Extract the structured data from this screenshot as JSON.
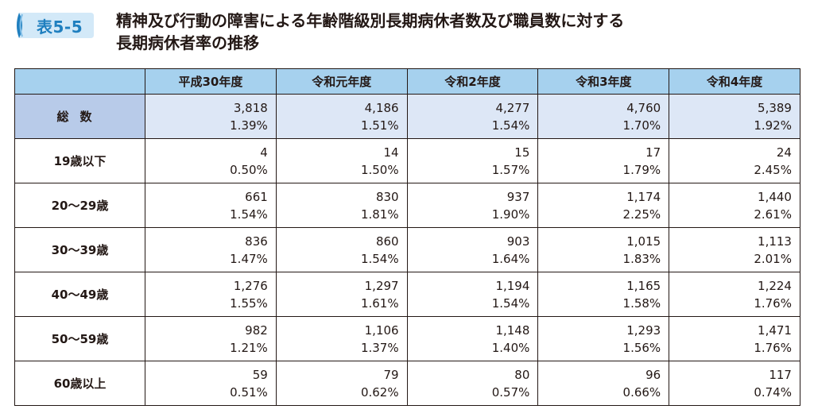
{
  "header": {
    "tag": "表5-5",
    "title_line1": "精神及び行動の障害による年齢階級別長期病休者数及び職員数に対する",
    "title_line2": "長期病休者率の推移",
    "tag_color": "#1f7fbf",
    "tag_bg": "#d3e9f8"
  },
  "table": {
    "corner": "",
    "columns": [
      "平成30年度",
      "令和元年度",
      "令和2年度",
      "令和3年度",
      "令和4年度"
    ],
    "rows": [
      {
        "label": "総数",
        "cells": [
          {
            "count": "3,818",
            "rate": "1.39%"
          },
          {
            "count": "4,186",
            "rate": "1.51%"
          },
          {
            "count": "4,277",
            "rate": "1.54%"
          },
          {
            "count": "4,760",
            "rate": "1.70%"
          },
          {
            "count": "5,389",
            "rate": "1.92%"
          }
        ]
      },
      {
        "label": "19歳以下",
        "cells": [
          {
            "count": "4",
            "rate": "0.50%"
          },
          {
            "count": "14",
            "rate": "1.50%"
          },
          {
            "count": "15",
            "rate": "1.57%"
          },
          {
            "count": "17",
            "rate": "1.79%"
          },
          {
            "count": "24",
            "rate": "2.45%"
          }
        ]
      },
      {
        "label": "20～29歳",
        "cells": [
          {
            "count": "661",
            "rate": "1.54%"
          },
          {
            "count": "830",
            "rate": "1.81%"
          },
          {
            "count": "937",
            "rate": "1.90%"
          },
          {
            "count": "1,174",
            "rate": "2.25%"
          },
          {
            "count": "1,440",
            "rate": "2.61%"
          }
        ]
      },
      {
        "label": "30～39歳",
        "cells": [
          {
            "count": "836",
            "rate": "1.47%"
          },
          {
            "count": "860",
            "rate": "1.54%"
          },
          {
            "count": "903",
            "rate": "1.64%"
          },
          {
            "count": "1,015",
            "rate": "1.83%"
          },
          {
            "count": "1,113",
            "rate": "2.01%"
          }
        ]
      },
      {
        "label": "40～49歳",
        "cells": [
          {
            "count": "1,276",
            "rate": "1.55%"
          },
          {
            "count": "1,297",
            "rate": "1.61%"
          },
          {
            "count": "1,194",
            "rate": "1.54%"
          },
          {
            "count": "1,165",
            "rate": "1.58%"
          },
          {
            "count": "1,224",
            "rate": "1.76%"
          }
        ]
      },
      {
        "label": "50～59歳",
        "cells": [
          {
            "count": "982",
            "rate": "1.21%"
          },
          {
            "count": "1,106",
            "rate": "1.37%"
          },
          {
            "count": "1,148",
            "rate": "1.40%"
          },
          {
            "count": "1,293",
            "rate": "1.56%"
          },
          {
            "count": "1,471",
            "rate": "1.76%"
          }
        ]
      },
      {
        "label": "60歳以上",
        "cells": [
          {
            "count": "59",
            "rate": "0.51%"
          },
          {
            "count": "79",
            "rate": "0.62%"
          },
          {
            "count": "80",
            "rate": "0.57%"
          },
          {
            "count": "96",
            "rate": "0.66%"
          },
          {
            "count": "117",
            "rate": "0.74%"
          }
        ]
      }
    ],
    "colors": {
      "header_bg": "#a6d1ee",
      "total_label_bg": "#b8cbe9",
      "total_cell_bg": "#dde7f6"
    }
  }
}
